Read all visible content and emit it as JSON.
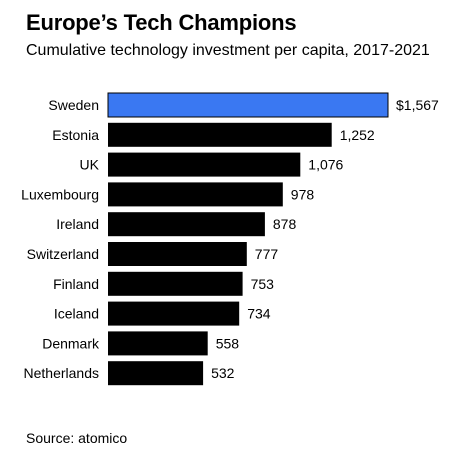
{
  "title": "Europe’s Tech Champions",
  "subtitle": "Cumulative technology investment per capita, 2017-2021",
  "source": "Source: atomico",
  "colors": {
    "highlight": "#3a78f2",
    "bar": "#000000",
    "text": "#000000"
  },
  "chart_data": {
    "type": "bar",
    "orientation": "horizontal",
    "categories": [
      "Sweden",
      "Estonia",
      "UK",
      "Luxembourg",
      "Ireland",
      "Switzerland",
      "Finland",
      "Iceland",
      "Denmark",
      "Netherlands"
    ],
    "values": [
      1567,
      1252,
      1076,
      978,
      878,
      777,
      753,
      734,
      558,
      532
    ],
    "value_labels": [
      "$1,567",
      "1,252",
      "1,076",
      "978",
      "878",
      "777",
      "753",
      "734",
      "558",
      "532"
    ],
    "highlighted_category": "Sweden",
    "title": "Europe’s Tech Champions",
    "subtitle": "Cumulative technology investment per capita, 2017-2021",
    "xlim": [
      0,
      1567
    ],
    "grid": false,
    "legend": "none"
  }
}
